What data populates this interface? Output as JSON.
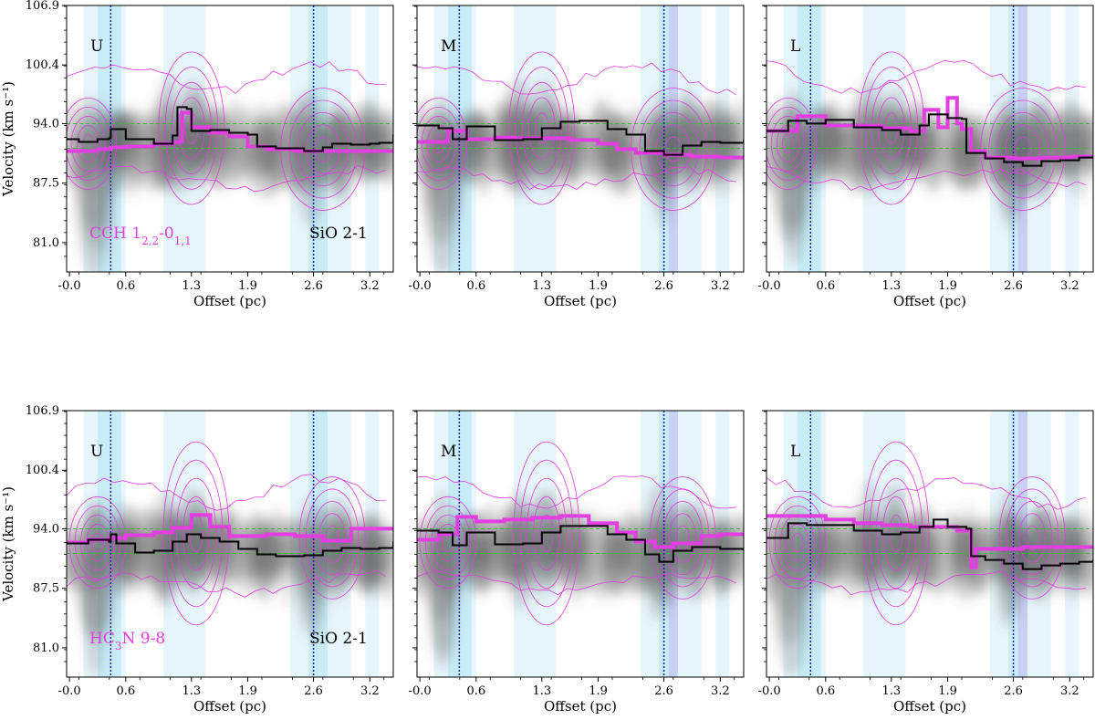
{
  "chart_data": {
    "type": "line",
    "description_title": "Position-velocity diagrams",
    "xlabel": "Offset (pc)",
    "ylabel": "Velocity (km s⁻¹)",
    "xlim": [
      -0.03,
      3.45
    ],
    "ylim": [
      77.8,
      106.9
    ],
    "xticks": [
      -0.0,
      0.6,
      1.3,
      1.9,
      2.6,
      3.2
    ],
    "xtick_labels": [
      "-0.0",
      "0.6",
      "1.3",
      "1.9",
      "2.6",
      "3.2"
    ],
    "yticks": [
      81.0,
      87.5,
      94.0,
      100.4,
      106.9
    ],
    "ytick_labels": [
      "81.0",
      "87.5",
      "94.0",
      "100.4",
      "106.9"
    ],
    "reference_velocities": [
      94.0,
      91.3
    ],
    "colors": {
      "gray_emission": "#555555",
      "magenta": "#e23ee2",
      "black_line": "#000000",
      "green_ref": "#3cb83c",
      "blue_vline": "#1a1aa8",
      "cyan_band": "#bfeaf7",
      "light_band": "#e6f6fc",
      "lavender_band": "#c8c8f2"
    },
    "rows": [
      {
        "row": "top",
        "tracer": "CCH 1_{2,2}-0_{1,1}",
        "tracer_main": "CCH 1",
        "tracer_sub": "2,2",
        "tracer_mid": "-0",
        "tracer_sub2": "1,1",
        "reference_label": "SiO 2-1",
        "panels": [
          {
            "label": "U",
            "vlines": [
              0.44,
              2.6
            ],
            "sio_peak_velocity": {
              "x": [
                -0.03,
                0.1,
                0.3,
                0.42,
                0.44,
                0.6,
                0.9,
                1.1,
                1.15,
                1.25,
                1.3,
                1.5,
                1.7,
                1.9,
                2.0,
                2.2,
                2.5,
                2.7,
                2.8,
                3.0,
                3.2,
                3.3,
                3.45
              ],
              "y": [
                92.3,
                92.0,
                92.3,
                92.4,
                93.4,
                92.3,
                91.8,
                92.7,
                95.8,
                95.6,
                93.2,
                93.3,
                93.0,
                92.8,
                91.5,
                91.3,
                91.0,
                91.4,
                91.8,
                91.7,
                91.8,
                91.9,
                92.8
              ]
            },
            "tracer_peak_velocity": {
              "x": [
                -0.03,
                0.3,
                0.44,
                0.6,
                0.9,
                1.1,
                1.2,
                1.3,
                1.5,
                1.7,
                1.9,
                2.1,
                2.4,
                2.6,
                2.8,
                3.0,
                3.2,
                3.45
              ],
              "y": [
                91.0,
                91.2,
                91.4,
                91.5,
                91.8,
                92.0,
                95.2,
                93.6,
                93.0,
                92.6,
                91.5,
                91.2,
                91.0,
                91.0,
                91.0,
                91.0,
                91.0,
                91.0
              ]
            }
          },
          {
            "label": "M",
            "vlines": [
              0.42,
              2.6
            ],
            "sio_peak_velocity": {
              "x": [
                -0.03,
                0.2,
                0.35,
                0.5,
                0.8,
                1.1,
                1.3,
                1.5,
                1.7,
                2.0,
                2.2,
                2.4,
                2.6,
                2.8,
                3.0,
                3.2,
                3.45
              ],
              "y": [
                93.8,
                93.5,
                92.3,
                93.7,
                92.2,
                92.3,
                93.5,
                94.2,
                94.3,
                93.4,
                92.8,
                91.0,
                90.6,
                91.6,
                92.0,
                91.9,
                92.2
              ]
            },
            "tracer_peak_velocity": {
              "x": [
                -0.03,
                0.3,
                0.5,
                0.8,
                1.0,
                1.3,
                1.6,
                1.9,
                2.1,
                2.3,
                2.6,
                2.9,
                3.2,
                3.45
              ],
              "y": [
                92.0,
                93.2,
                92.3,
                92.5,
                92.4,
                92.4,
                92.2,
                91.8,
                91.2,
                90.8,
                90.6,
                90.4,
                90.3,
                90.3
              ]
            }
          },
          {
            "label": "L",
            "vlines": [
              0.44,
              2.6
            ],
            "sio_peak_velocity": {
              "x": [
                -0.03,
                0.2,
                0.4,
                0.6,
                0.9,
                1.2,
                1.4,
                1.6,
                1.7,
                1.9,
                2.05,
                2.1,
                2.3,
                2.5,
                2.7,
                2.9,
                3.1,
                3.3,
                3.45
              ],
              "y": [
                93.2,
                94.3,
                94.0,
                94.4,
                93.6,
                93.3,
                92.8,
                93.8,
                95.0,
                94.6,
                94.5,
                90.8,
                90.2,
                89.8,
                89.4,
                89.9,
                90.0,
                90.3,
                90.4
              ]
            },
            "tracer_peak_velocity": {
              "x": [
                -0.03,
                0.3,
                0.6,
                0.9,
                1.2,
                1.5,
                1.65,
                1.8,
                1.9,
                2.0,
                2.05,
                2.15,
                2.3,
                2.6,
                2.9,
                3.2,
                3.45
              ],
              "y": [
                93.2,
                94.8,
                93.8,
                93.8,
                93.5,
                93.2,
                95.5,
                93.6,
                96.8,
                94.0,
                93.4,
                91.0,
                90.3,
                90.2,
                90.3,
                90.4,
                90.6
              ]
            }
          }
        ]
      },
      {
        "row": "bottom",
        "tracer": "HC_3N 9-8",
        "tracer_main": "HC",
        "tracer_sub": "3",
        "tracer_mid": "N 9-8",
        "tracer_sub2": "",
        "reference_label": "SiO 2-1",
        "panels": [
          {
            "label": "U",
            "vlines": [
              0.44,
              2.6
            ],
            "sio_peak_velocity": {
              "x": [
                -0.03,
                0.2,
                0.42,
                0.44,
                0.5,
                0.7,
                0.9,
                1.1,
                1.25,
                1.4,
                1.6,
                1.8,
                2.0,
                2.2,
                2.5,
                2.7,
                2.9,
                3.1,
                3.3,
                3.45
              ],
              "y": [
                92.4,
                92.8,
                92.6,
                93.4,
                92.4,
                91.4,
                91.6,
                92.6,
                93.4,
                93.0,
                92.6,
                91.8,
                91.2,
                91.0,
                91.1,
                91.6,
                91.9,
                91.8,
                91.9,
                92.6
              ]
            },
            "tracer_peak_velocity": {
              "x": [
                -0.03,
                0.2,
                0.44,
                0.6,
                0.9,
                1.1,
                1.3,
                1.5,
                1.7,
                1.9,
                2.1,
                2.4,
                2.7,
                3.0,
                3.2,
                3.45
              ],
              "y": [
                92.5,
                92.8,
                93.0,
                93.3,
                93.6,
                94.1,
                95.5,
                94.2,
                93.2,
                93.2,
                93.4,
                93.2,
                92.7,
                94.0,
                94.0,
                94.0
              ]
            }
          },
          {
            "label": "M",
            "vlines": [
              0.42,
              2.6
            ],
            "sio_peak_velocity": {
              "x": [
                -0.03,
                0.2,
                0.35,
                0.5,
                0.8,
                1.1,
                1.3,
                1.5,
                1.7,
                2.0,
                2.2,
                2.4,
                2.55,
                2.7,
                2.9,
                3.2,
                3.45
              ],
              "y": [
                93.8,
                93.6,
                92.2,
                93.6,
                92.3,
                92.4,
                93.6,
                94.3,
                94.3,
                93.4,
                92.8,
                91.2,
                90.4,
                91.6,
                92.0,
                91.8,
                91.6
              ]
            },
            "tracer_peak_velocity": {
              "x": [
                -0.03,
                0.2,
                0.4,
                0.6,
                0.9,
                1.2,
                1.5,
                1.8,
                2.1,
                2.3,
                2.5,
                2.7,
                3.0,
                3.2,
                3.45
              ],
              "y": [
                92.8,
                93.4,
                95.3,
                94.8,
                95.0,
                95.2,
                95.4,
                94.6,
                93.6,
                92.6,
                92.0,
                92.4,
                93.2,
                93.4,
                93.2
              ]
            }
          },
          {
            "label": "L",
            "vlines": [
              0.44,
              2.6
            ],
            "sio_peak_velocity": {
              "x": [
                -0.03,
                0.2,
                0.4,
                0.6,
                0.9,
                1.2,
                1.4,
                1.6,
                1.75,
                1.9,
                2.1,
                2.15,
                2.3,
                2.5,
                2.7,
                2.9,
                3.1,
                3.3,
                3.45
              ],
              "y": [
                93.0,
                94.6,
                94.4,
                94.4,
                93.8,
                93.4,
                93.6,
                94.2,
                95.0,
                94.2,
                94.0,
                91.0,
                90.6,
                90.2,
                89.6,
                90.0,
                90.2,
                90.4,
                90.6
              ]
            },
            "tracer_peak_velocity": {
              "x": [
                -0.03,
                0.3,
                0.6,
                0.9,
                1.2,
                1.5,
                1.8,
                2.0,
                2.15,
                2.2,
                2.5,
                2.7,
                3.0,
                3.2,
                3.45
              ],
              "y": [
                95.4,
                95.4,
                95.0,
                94.6,
                94.4,
                94.2,
                94.2,
                93.8,
                89.8,
                91.8,
                91.8,
                92.0,
                92.0,
                92.0,
                92.0
              ]
            }
          }
        ]
      }
    ]
  }
}
